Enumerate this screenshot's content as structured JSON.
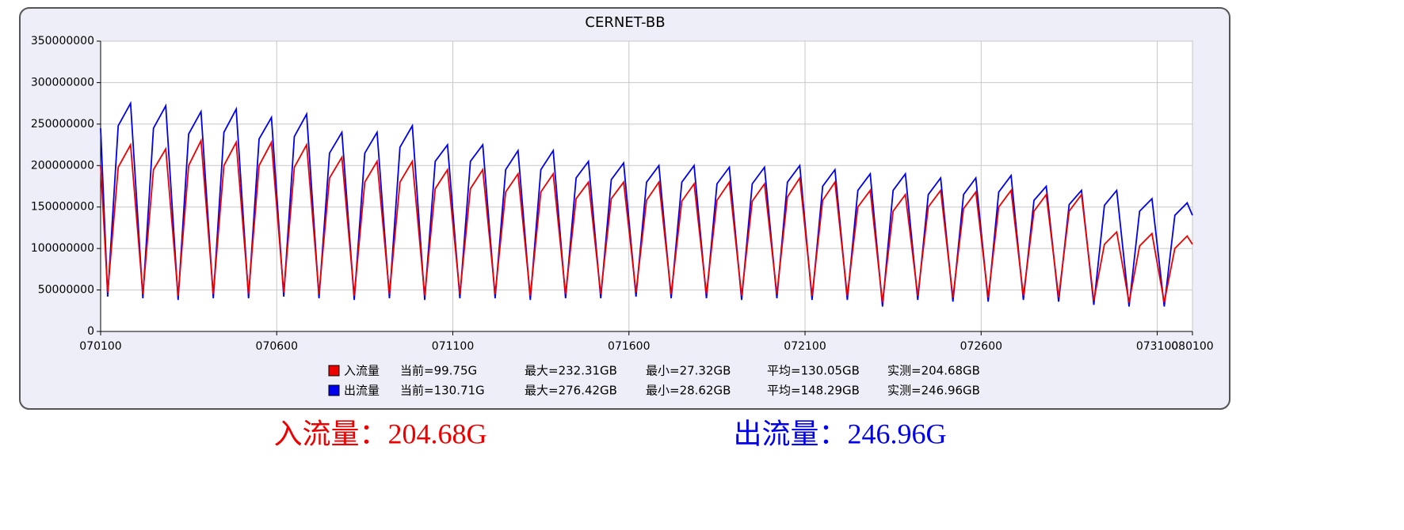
{
  "chart_data": {
    "type": "line",
    "title": "CERNET-BB",
    "x": [
      0,
      0.2,
      0.5,
      0.85,
      1.2,
      1.5,
      1.85,
      2.2,
      2.5,
      2.85,
      3.2,
      3.5,
      3.85,
      4.2,
      4.5,
      4.85,
      5.2,
      5.5,
      5.85,
      6.2,
      6.5,
      6.85,
      7.2,
      7.5,
      7.85,
      8.2,
      8.5,
      8.85,
      9.2,
      9.5,
      9.85,
      10.2,
      10.5,
      10.85,
      11.2,
      11.5,
      11.85,
      12.2,
      12.5,
      12.85,
      13.2,
      13.5,
      13.85,
      14.2,
      14.5,
      14.85,
      15.2,
      15.5,
      15.85,
      16.2,
      16.5,
      16.85,
      17.2,
      17.5,
      17.85,
      18.2,
      18.5,
      18.85,
      19.2,
      19.5,
      19.85,
      20.2,
      20.5,
      20.85,
      21.2,
      21.5,
      21.85,
      22.2,
      22.5,
      22.85,
      23.2,
      23.5,
      23.85,
      24.2,
      24.5,
      24.85,
      25.2,
      25.5,
      25.85,
      26.2,
      26.5,
      26.85,
      27.2,
      27.5,
      27.85,
      28.2,
      28.5,
      28.85,
      29.2,
      29.5,
      29.85,
      30.2,
      30.5,
      30.85,
      31
    ],
    "series": [
      {
        "name": "出流量",
        "color": "#0000ee",
        "stats": [
          "当前=130.71G",
          "最大=276.42GB",
          "最小=28.62GB",
          "平均=148.29GB",
          "实测=246.96GB"
        ],
        "values": [
          245000000,
          42000000,
          248000000,
          275000000,
          40000000,
          245000000,
          272000000,
          38000000,
          238000000,
          265000000,
          40000000,
          240000000,
          268000000,
          40000000,
          232000000,
          258000000,
          42000000,
          235000000,
          262000000,
          40000000,
          215000000,
          240000000,
          38000000,
          215000000,
          240000000,
          40000000,
          222000000,
          248000000,
          38000000,
          205000000,
          225000000,
          40000000,
          205000000,
          225000000,
          40000000,
          195000000,
          218000000,
          38000000,
          195000000,
          218000000,
          40000000,
          185000000,
          205000000,
          40000000,
          183000000,
          203000000,
          42000000,
          180000000,
          200000000,
          40000000,
          180000000,
          200000000,
          40000000,
          178000000,
          198000000,
          38000000,
          178000000,
          198000000,
          40000000,
          180000000,
          200000000,
          38000000,
          175000000,
          195000000,
          38000000,
          170000000,
          190000000,
          30000000,
          170000000,
          190000000,
          38000000,
          165000000,
          185000000,
          36000000,
          165000000,
          185000000,
          36000000,
          168000000,
          188000000,
          38000000,
          158000000,
          175000000,
          36000000,
          153000000,
          170000000,
          32000000,
          152000000,
          170000000,
          30000000,
          145000000,
          160000000,
          30000000,
          140000000,
          155000000,
          140000000
        ]
      },
      {
        "name": "入流量",
        "color": "#ee0000",
        "stats": [
          "当前=99.75G",
          "最大=232.31GB",
          "最小=27.32GB",
          "平均=130.05GB",
          "实测=204.68GB"
        ],
        "values": [
          200000000,
          47000000,
          198000000,
          225000000,
          45000000,
          195000000,
          220000000,
          43000000,
          200000000,
          230000000,
          45000000,
          200000000,
          228000000,
          45000000,
          200000000,
          228000000,
          47000000,
          198000000,
          225000000,
          45000000,
          185000000,
          210000000,
          43000000,
          180000000,
          205000000,
          45000000,
          180000000,
          205000000,
          43000000,
          172000000,
          195000000,
          45000000,
          172000000,
          195000000,
          45000000,
          168000000,
          190000000,
          43000000,
          168000000,
          190000000,
          45000000,
          160000000,
          180000000,
          45000000,
          160000000,
          180000000,
          47000000,
          158000000,
          180000000,
          45000000,
          157000000,
          178000000,
          45000000,
          158000000,
          180000000,
          43000000,
          157000000,
          178000000,
          45000000,
          162000000,
          185000000,
          43000000,
          158000000,
          180000000,
          43000000,
          150000000,
          170000000,
          35000000,
          145000000,
          165000000,
          43000000,
          150000000,
          170000000,
          41000000,
          148000000,
          168000000,
          41000000,
          150000000,
          170000000,
          43000000,
          145000000,
          165000000,
          41000000,
          145000000,
          165000000,
          37000000,
          105000000,
          120000000,
          35000000,
          103000000,
          118000000,
          35000000,
          100000000,
          115000000,
          105000000
        ]
      }
    ],
    "legend_order": [
      1,
      0
    ],
    "xlim": [
      0,
      31
    ],
    "xticks": [
      {
        "value": 0,
        "label": "070100"
      },
      {
        "value": 5,
        "label": "070600"
      },
      {
        "value": 10,
        "label": "071100"
      },
      {
        "value": 15,
        "label": "071600"
      },
      {
        "value": 20,
        "label": "072100"
      },
      {
        "value": 25,
        "label": "072600"
      },
      {
        "value": 30,
        "label": "073100"
      },
      {
        "value": 31,
        "label": "080100"
      }
    ],
    "ylim": [
      0,
      350000000
    ],
    "yticks": [
      0,
      50000000,
      100000000,
      150000000,
      200000000,
      250000000,
      300000000,
      350000000
    ],
    "grid": true
  },
  "footer": [
    {
      "text": "入流量：204.68G",
      "color": "#ee0000"
    },
    {
      "text": "出流量：246.96G",
      "color": "#0000ee"
    }
  ]
}
